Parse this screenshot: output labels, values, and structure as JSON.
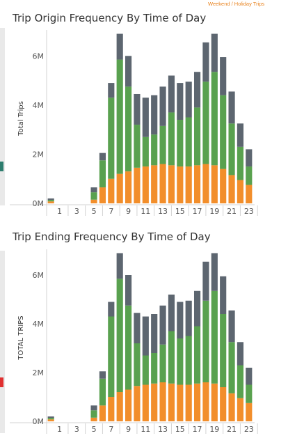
{
  "legend_note": "Weekend / Holiday Trips",
  "colors": {
    "weekday": "#f28e2b",
    "weekday_mid": "#59a14f",
    "weekend": "#5d6670",
    "axis": "#d3d3d3",
    "side_teal": "#2e7d6e",
    "side_red": "#e03030"
  },
  "chart_data": [
    {
      "type": "bar",
      "title": "Trip Origin Frequency By Time of Day",
      "ylabel": "Total Trips",
      "ylim": [
        0,
        7000000
      ],
      "y_ticks": [
        0,
        2000000,
        4000000,
        6000000
      ],
      "y_tick_labels": [
        "0M",
        "2M",
        "4M",
        "6M"
      ],
      "x_tick_labels": [
        "1",
        "3",
        "5",
        "7",
        "9",
        "11",
        "13",
        "15",
        "17",
        "19",
        "21",
        "23"
      ],
      "categories": [
        "0",
        "1",
        "2",
        "3",
        "4",
        "5",
        "6",
        "7",
        "8",
        "9",
        "10",
        "11",
        "12",
        "13",
        "14",
        "15",
        "16",
        "17",
        "18",
        "19",
        "20",
        "21",
        "22",
        "23"
      ],
      "stacked": true,
      "series": [
        {
          "key": "orange",
          "values": [
            80000,
            0,
            0,
            0,
            0,
            150000,
            650000,
            1000000,
            1200000,
            1300000,
            1450000,
            1500000,
            1550000,
            1600000,
            1550000,
            1500000,
            1500000,
            1550000,
            1600000,
            1550000,
            1400000,
            1150000,
            950000,
            750000
          ]
        },
        {
          "key": "green",
          "values": [
            60000,
            0,
            0,
            0,
            0,
            300000,
            1100000,
            3300000,
            4650000,
            3450000,
            1750000,
            1200000,
            1250000,
            1550000,
            2150000,
            1900000,
            2000000,
            2350000,
            3350000,
            3800000,
            3000000,
            2100000,
            1350000,
            750000
          ]
        },
        {
          "key": "gray",
          "values": [
            60000,
            0,
            0,
            0,
            0,
            200000,
            300000,
            600000,
            1050000,
            1250000,
            1250000,
            1600000,
            1600000,
            1600000,
            1500000,
            1500000,
            1450000,
            1450000,
            1600000,
            1550000,
            1550000,
            1300000,
            950000,
            700000
          ]
        }
      ]
    },
    {
      "type": "bar",
      "title": "Trip Ending Frequency By Time of Day",
      "ylabel": "TOTAL TRIPS",
      "ylim": [
        0,
        7000000
      ],
      "y_ticks": [
        0,
        2000000,
        4000000,
        6000000
      ],
      "y_tick_labels": [
        "0M",
        "2M",
        "4M",
        "6M"
      ],
      "x_tick_labels": [
        "1",
        "3",
        "5",
        "7",
        "9",
        "11",
        "13",
        "15",
        "17",
        "19",
        "21",
        "23"
      ],
      "categories": [
        "0",
        "1",
        "2",
        "3",
        "4",
        "5",
        "6",
        "7",
        "8",
        "9",
        "10",
        "11",
        "12",
        "13",
        "14",
        "15",
        "16",
        "17",
        "18",
        "19",
        "20",
        "21",
        "22",
        "23"
      ],
      "stacked": true,
      "series": [
        {
          "key": "orange",
          "values": [
            80000,
            0,
            0,
            0,
            0,
            150000,
            650000,
            1000000,
            1200000,
            1300000,
            1450000,
            1500000,
            1550000,
            1600000,
            1550000,
            1500000,
            1500000,
            1550000,
            1600000,
            1550000,
            1400000,
            1150000,
            950000,
            750000
          ]
        },
        {
          "key": "green",
          "values": [
            60000,
            0,
            0,
            0,
            0,
            300000,
            1100000,
            3300000,
            4650000,
            3450000,
            1750000,
            1200000,
            1250000,
            1550000,
            2150000,
            1900000,
            2000000,
            2350000,
            3350000,
            3800000,
            3000000,
            2100000,
            1350000,
            750000
          ]
        },
        {
          "key": "gray",
          "values": [
            60000,
            0,
            0,
            0,
            0,
            200000,
            300000,
            600000,
            1050000,
            1250000,
            1250000,
            1600000,
            1600000,
            1600000,
            1500000,
            1500000,
            1450000,
            1450000,
            1600000,
            1550000,
            1550000,
            1300000,
            950000,
            700000
          ]
        }
      ]
    }
  ]
}
